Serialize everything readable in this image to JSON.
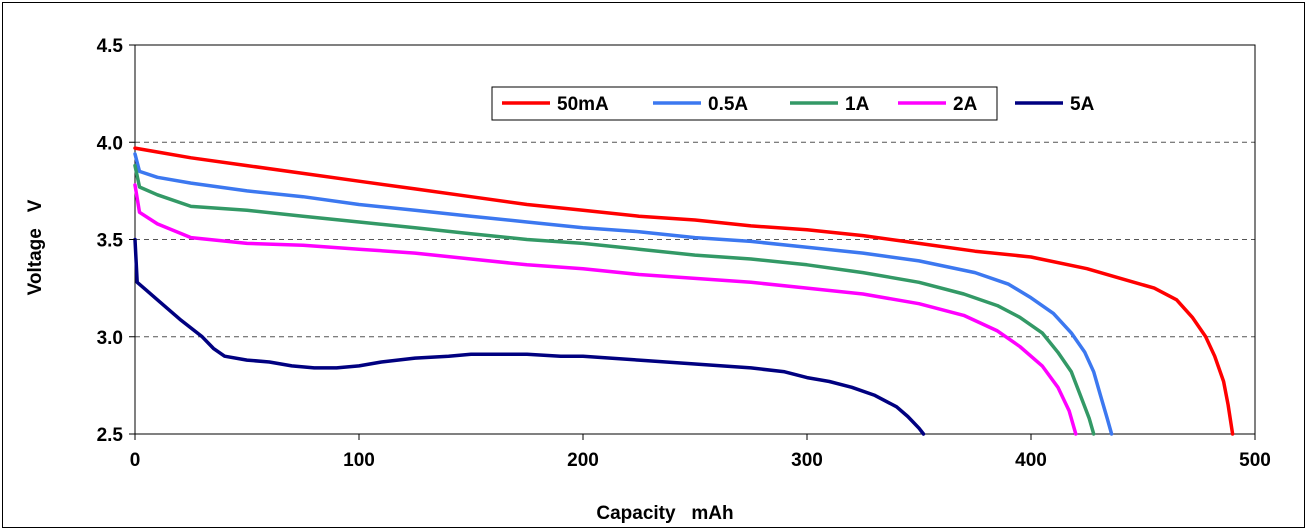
{
  "chart_data": {
    "type": "line",
    "title": "",
    "xlabel": "Capacity   mAh",
    "ylabel": "Voltage   V",
    "xlim": [
      0,
      500
    ],
    "ylim": [
      2.5,
      4.5
    ],
    "x_ticks": [
      "0",
      "100",
      "200",
      "300",
      "400",
      "500"
    ],
    "y_ticks": [
      "2.5",
      "3.0",
      "3.5",
      "4.0",
      "4.5"
    ],
    "grid": "horizontal dashed at 3.0, 3.5, 4.0",
    "legend_position": "top-right",
    "series": [
      {
        "name": "50mA",
        "color": "#ff0000",
        "points": [
          [
            0,
            3.97
          ],
          [
            10,
            3.95
          ],
          [
            25,
            3.92
          ],
          [
            50,
            3.88
          ],
          [
            75,
            3.84
          ],
          [
            100,
            3.8
          ],
          [
            125,
            3.76
          ],
          [
            150,
            3.72
          ],
          [
            175,
            3.68
          ],
          [
            200,
            3.65
          ],
          [
            225,
            3.62
          ],
          [
            250,
            3.6
          ],
          [
            275,
            3.57
          ],
          [
            300,
            3.55
          ],
          [
            325,
            3.52
          ],
          [
            350,
            3.48
          ],
          [
            375,
            3.44
          ],
          [
            400,
            3.41
          ],
          [
            425,
            3.35
          ],
          [
            440,
            3.3
          ],
          [
            455,
            3.25
          ],
          [
            465,
            3.19
          ],
          [
            472,
            3.1
          ],
          [
            478,
            3.0
          ],
          [
            482,
            2.9
          ],
          [
            486,
            2.77
          ],
          [
            488,
            2.65
          ],
          [
            490,
            2.5
          ]
        ]
      },
      {
        "name": "0.5A",
        "color": "#3c78f0",
        "points": [
          [
            0,
            3.94
          ],
          [
            2,
            3.85
          ],
          [
            10,
            3.82
          ],
          [
            25,
            3.79
          ],
          [
            50,
            3.75
          ],
          [
            75,
            3.72
          ],
          [
            100,
            3.68
          ],
          [
            125,
            3.65
          ],
          [
            150,
            3.62
          ],
          [
            175,
            3.59
          ],
          [
            200,
            3.56
          ],
          [
            225,
            3.54
          ],
          [
            250,
            3.51
          ],
          [
            275,
            3.49
          ],
          [
            300,
            3.46
          ],
          [
            325,
            3.43
          ],
          [
            350,
            3.39
          ],
          [
            375,
            3.33
          ],
          [
            390,
            3.27
          ],
          [
            400,
            3.2
          ],
          [
            410,
            3.12
          ],
          [
            418,
            3.02
          ],
          [
            424,
            2.92
          ],
          [
            428,
            2.82
          ],
          [
            431,
            2.7
          ],
          [
            434,
            2.58
          ],
          [
            436,
            2.5
          ]
        ]
      },
      {
        "name": "1A",
        "color": "#339966",
        "points": [
          [
            0,
            3.88
          ],
          [
            2,
            3.77
          ],
          [
            10,
            3.73
          ],
          [
            25,
            3.67
          ],
          [
            50,
            3.65
          ],
          [
            75,
            3.62
          ],
          [
            100,
            3.59
          ],
          [
            125,
            3.56
          ],
          [
            150,
            3.53
          ],
          [
            175,
            3.5
          ],
          [
            200,
            3.48
          ],
          [
            225,
            3.45
          ],
          [
            250,
            3.42
          ],
          [
            275,
            3.4
          ],
          [
            300,
            3.37
          ],
          [
            325,
            3.33
          ],
          [
            350,
            3.28
          ],
          [
            370,
            3.22
          ],
          [
            385,
            3.16
          ],
          [
            395,
            3.1
          ],
          [
            405,
            3.02
          ],
          [
            412,
            2.92
          ],
          [
            418,
            2.82
          ],
          [
            422,
            2.7
          ],
          [
            426,
            2.58
          ],
          [
            428,
            2.5
          ]
        ]
      },
      {
        "name": "2A",
        "color": "#ff00ff",
        "points": [
          [
            0,
            3.78
          ],
          [
            2,
            3.64
          ],
          [
            10,
            3.58
          ],
          [
            25,
            3.51
          ],
          [
            50,
            3.48
          ],
          [
            75,
            3.47
          ],
          [
            100,
            3.45
          ],
          [
            125,
            3.43
          ],
          [
            150,
            3.4
          ],
          [
            175,
            3.37
          ],
          [
            200,
            3.35
          ],
          [
            225,
            3.32
          ],
          [
            250,
            3.3
          ],
          [
            275,
            3.28
          ],
          [
            300,
            3.25
          ],
          [
            325,
            3.22
          ],
          [
            350,
            3.17
          ],
          [
            370,
            3.11
          ],
          [
            385,
            3.03
          ],
          [
            395,
            2.95
          ],
          [
            405,
            2.85
          ],
          [
            412,
            2.74
          ],
          [
            417,
            2.62
          ],
          [
            420,
            2.5
          ]
        ]
      },
      {
        "name": "5A",
        "color": "#000080",
        "points": [
          [
            0,
            3.5
          ],
          [
            1,
            3.28
          ],
          [
            5,
            3.24
          ],
          [
            10,
            3.19
          ],
          [
            20,
            3.09
          ],
          [
            30,
            3.0
          ],
          [
            35,
            2.94
          ],
          [
            40,
            2.9
          ],
          [
            50,
            2.88
          ],
          [
            60,
            2.87
          ],
          [
            70,
            2.85
          ],
          [
            80,
            2.84
          ],
          [
            90,
            2.84
          ],
          [
            100,
            2.85
          ],
          [
            110,
            2.87
          ],
          [
            125,
            2.89
          ],
          [
            140,
            2.9
          ],
          [
            150,
            2.91
          ],
          [
            175,
            2.91
          ],
          [
            190,
            2.9
          ],
          [
            200,
            2.9
          ],
          [
            225,
            2.88
          ],
          [
            250,
            2.86
          ],
          [
            275,
            2.84
          ],
          [
            290,
            2.82
          ],
          [
            300,
            2.79
          ],
          [
            310,
            2.77
          ],
          [
            320,
            2.74
          ],
          [
            330,
            2.7
          ],
          [
            340,
            2.64
          ],
          [
            345,
            2.59
          ],
          [
            350,
            2.53
          ],
          [
            352,
            2.5
          ]
        ]
      }
    ]
  }
}
